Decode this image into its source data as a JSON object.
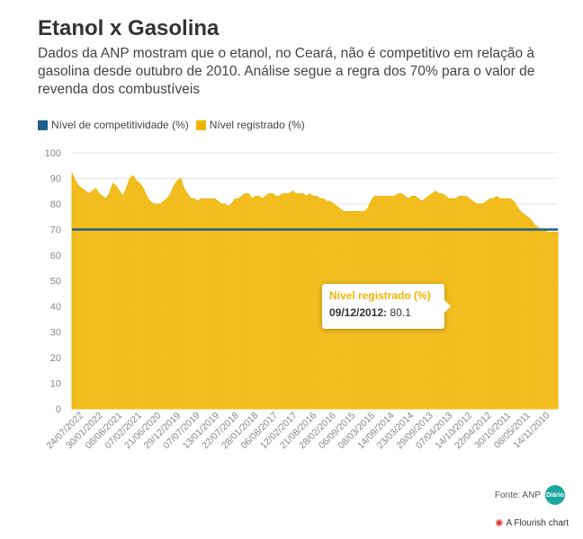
{
  "title": "Etanol x Gasolina",
  "subtitle": "Dados da ANP mostram que o etanol, no Ceará, não é competitivo em relação à gasolina desde outubro de 2010. Análise segue a regra dos 70% para o valor de revenda dos combustíveis",
  "legend": {
    "items": [
      {
        "label": "Nível de competitividade (%)",
        "color": "#1f5f8b"
      },
      {
        "label": "Nível registrado (%)",
        "color": "#f0b400"
      }
    ]
  },
  "tooltip": {
    "title": "Nível registrado (%)",
    "date": "09/12/2012:",
    "value": "80.1"
  },
  "source": {
    "label": "Fonte: ANP",
    "logo_text": "Diário"
  },
  "flourish": {
    "label": "A Flourish chart",
    "icon": "flourish-logo-icon"
  },
  "chart_data": {
    "type": "area",
    "x_direction": "dates shown newest on the left, oldest on the right",
    "x_tick_labels": [
      "24/07/2022",
      "30/01/2022",
      "08/08/2021",
      "07/02/2021",
      "21/06/2020",
      "29/12/2019",
      "07/07/2019",
      "13/01/2019",
      "22/07/2018",
      "28/01/2018",
      "06/08/2017",
      "12/02/2017",
      "21/08/2016",
      "28/02/2016",
      "06/09/2015",
      "08/03/2015",
      "14/09/2014",
      "23/03/2014",
      "29/09/2013",
      "07/04/2013",
      "14/10/2012",
      "22/04/2012",
      "30/10/2011",
      "08/05/2011",
      "14/11/2010"
    ],
    "ylim": [
      0,
      100
    ],
    "y_ticks": [
      0,
      10,
      20,
      30,
      40,
      50,
      60,
      70,
      80,
      90,
      100
    ],
    "grid": true,
    "legend_position": "top-left",
    "series": [
      {
        "name": "Nível registrado (%)",
        "color": "#f0b400",
        "values": [
          92,
          89,
          87,
          86,
          85,
          84,
          85,
          86,
          84,
          83,
          82,
          84,
          88,
          87,
          85,
          83,
          86,
          90,
          91,
          89,
          88,
          86,
          83,
          81,
          80,
          80,
          80,
          81,
          82,
          84,
          87,
          89,
          90,
          86,
          84,
          82,
          82,
          81,
          82,
          82,
          82,
          82,
          82,
          81,
          80,
          80,
          79,
          80,
          82,
          82,
          83,
          84,
          84,
          82,
          83,
          83,
          82,
          83,
          84,
          84,
          83,
          83,
          84,
          84,
          84,
          85,
          84,
          84,
          84,
          83,
          84,
          83,
          83,
          82,
          82,
          81,
          81,
          80,
          79,
          78,
          77,
          77,
          77,
          77,
          77,
          77,
          77,
          78,
          81,
          83,
          83,
          83,
          83,
          83,
          83,
          83,
          84,
          84,
          83,
          82,
          83,
          83,
          82,
          81,
          82,
          83,
          84,
          85,
          84,
          84,
          83,
          82,
          82,
          82,
          83,
          83,
          83,
          82,
          81,
          80,
          80,
          80,
          81,
          82,
          82,
          83,
          82,
          82,
          82,
          82,
          81,
          79,
          77,
          76,
          75,
          74,
          72,
          71,
          70,
          70,
          69,
          69,
          69,
          69
        ]
      },
      {
        "name": "Nível de competitividade (%)",
        "color": "#1f5f8b",
        "values": [
          70,
          70
        ]
      }
    ]
  }
}
